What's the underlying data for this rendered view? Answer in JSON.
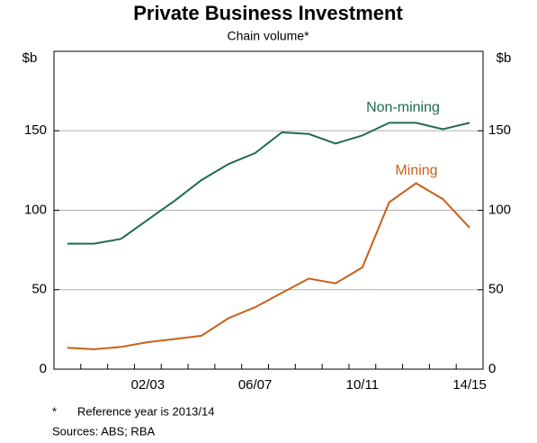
{
  "chart_data": {
    "type": "line",
    "title": "Private Business Investment",
    "subtitle": "Chain volume*",
    "y_label": "$b",
    "y2_label": "$b",
    "categories": [
      null,
      null,
      null,
      "02/03",
      null,
      null,
      null,
      "06/07",
      null,
      null,
      null,
      "10/11",
      null,
      null,
      null,
      "14/15"
    ],
    "series": [
      {
        "name": "Non-mining",
        "color": "#1f6b4f",
        "values": [
          79,
          79,
          82,
          94,
          106,
          119,
          129,
          136,
          149,
          148,
          142,
          147,
          155,
          155,
          151,
          155
        ]
      },
      {
        "name": "Mining",
        "color": "#c8601a",
        "values": [
          13.5,
          12.5,
          14,
          17,
          19,
          21,
          32,
          39,
          48,
          57,
          54,
          64,
          105,
          117,
          107,
          89
        ]
      }
    ],
    "ylim": [
      0,
      200
    ],
    "yticks": [
      0,
      50,
      100,
      150
    ],
    "y2lim": [
      0,
      200
    ],
    "y2ticks": [
      0,
      50,
      100,
      150
    ],
    "grid": true,
    "footnotes": [
      "*",
      "Reference year is 2013/14",
      "Sources:  ABS; RBA"
    ]
  }
}
